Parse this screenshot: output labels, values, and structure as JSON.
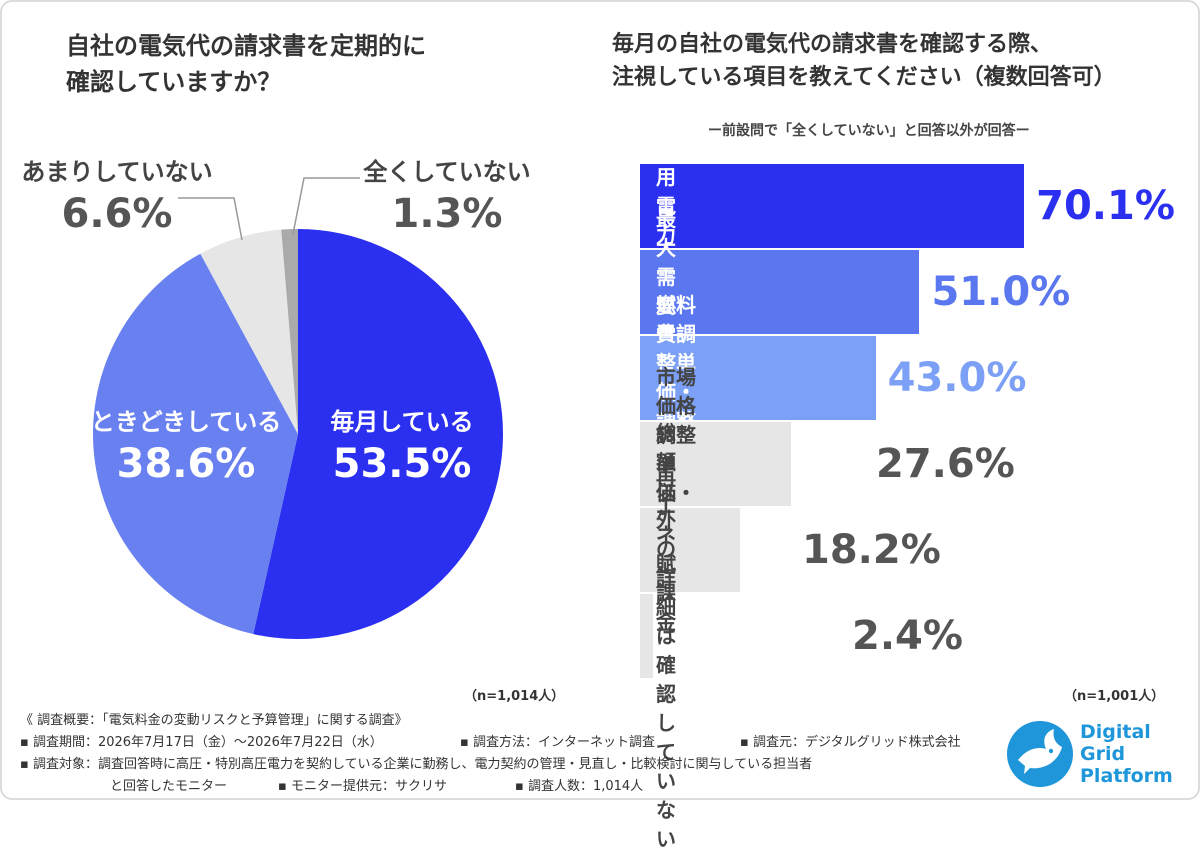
{
  "left_chart": {
    "title": "自社の電気代の請求書を定期的に\n確認していますか？",
    "n_label": "（n=1,014人）"
  },
  "right_chart": {
    "title": "毎月の自社の電気代の請求書を確認する際、\n注視している項目を教えてください（複数回答可）",
    "subtitle": "ー前設問で「全くしていない」と回答以外が回答ー",
    "n_label": "（n=1,001人）"
  },
  "chart_data": [
    {
      "type": "pie",
      "title": "自社の電気代の請求書を定期的に確認していますか？",
      "slices": [
        {
          "label": "毎月している",
          "value": 53.5,
          "value_label": "53.5%",
          "color": "#2a2ff0"
        },
        {
          "label": "ときどきしている",
          "value": 38.6,
          "value_label": "38.6%",
          "color": "#6880f0"
        },
        {
          "label": "あまりしていない",
          "value": 6.6,
          "value_label": "6.6%",
          "color": "#e6e6e6"
        },
        {
          "label": "全くしていない",
          "value": 1.3,
          "value_label": "1.3%",
          "color": "#aaaaaa"
        }
      ]
    },
    {
      "type": "bar",
      "orientation": "horizontal",
      "title": "毎月の自社の電気代の請求書を確認する際、注視している項目を教えてください（複数回答可）",
      "categories": [
        "使用電力量",
        "最大需要電力",
        "燃料費調整単価・\n調整額",
        "市場価格調整単価・\n調整額",
        "再エネ賦課金",
        "総額以外の詳細は\n確認していない"
      ],
      "values": [
        70.1,
        51.0,
        43.0,
        27.6,
        18.2,
        2.4
      ],
      "value_labels": [
        "70.1%",
        "51.0%",
        "43.0%",
        "27.6%",
        "18.2%",
        "2.4%"
      ],
      "colors": [
        "#2a2ff0",
        "#5a77f0",
        "#7ca0f5",
        "#e6e6e6",
        "#e6e6e6",
        "#e6e6e6"
      ],
      "label_colors": [
        "#ffffff",
        "#ffffff",
        "#ffffff",
        "#444444",
        "#444444",
        "#444444"
      ],
      "value_colors": [
        "#2a2ff0",
        "#5a77f0",
        "#7ca0f5",
        "#555555",
        "#555555",
        "#555555"
      ],
      "xlim": [
        0,
        100
      ]
    }
  ],
  "footer": {
    "summary": "《 調査概要：「電気料金の変動リスクと予算管理」に関する調査》",
    "period": "▪ 調査期間：2026年7月17日（金）〜2026年7月22日（水）",
    "method": "▪ 調査方法：インターネット調査",
    "source": "▪ 調査元：デジタルグリッド株式会社",
    "target": "▪ 調査対象：調査回答時に高圧・特別高圧電力を契約している企業に勤務し、電力契約の管理・見直し・比較検討に関与している担当者",
    "target_cont": "と回答したモニター",
    "provider": "▪ モニター提供元：サクリサ",
    "respondents": "▪ 調査人数：1,014人"
  },
  "logo": {
    "line1": "Digital",
    "line2": "Grid",
    "line3": "Platform",
    "icon": "dove-icon",
    "color": "#1e96d9"
  }
}
